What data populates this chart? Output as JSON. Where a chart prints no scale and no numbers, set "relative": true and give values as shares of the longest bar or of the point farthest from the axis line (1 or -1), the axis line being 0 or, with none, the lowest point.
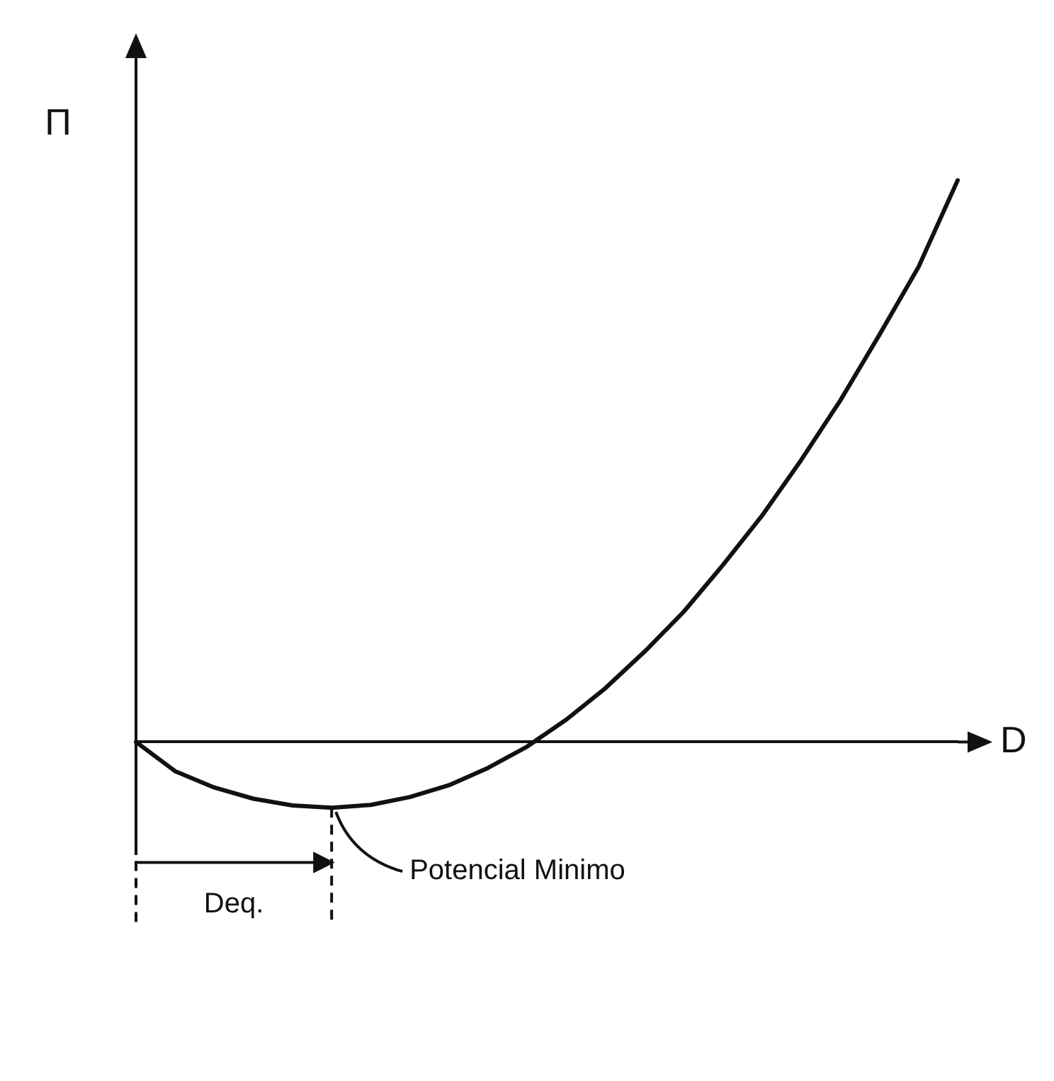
{
  "chart_data": {
    "type": "line",
    "xlabel": "D",
    "ylabel": "Π",
    "relative": true,
    "marker": "none",
    "line_style": "solid",
    "grid": false,
    "legend": false,
    "categories": [
      null,
      null,
      null,
      null,
      null,
      null,
      null,
      null,
      null,
      null,
      null,
      null,
      null,
      null,
      null,
      null,
      null,
      null,
      null,
      null,
      null,
      null
    ],
    "series": [
      {
        "color": "#111111",
        "values": [
          0,
          -0.052,
          -0.081,
          -0.101,
          -0.113,
          -0.117,
          -0.112,
          -0.098,
          -0.077,
          -0.046,
          -0.008,
          0.04,
          0.096,
          0.161,
          0.232,
          0.315,
          0.403,
          0.502,
          0.608,
          0.725,
          0.846,
          1
        ]
      }
    ],
    "annotations": [
      "Potencial Minimo",
      "Deq."
    ]
  }
}
